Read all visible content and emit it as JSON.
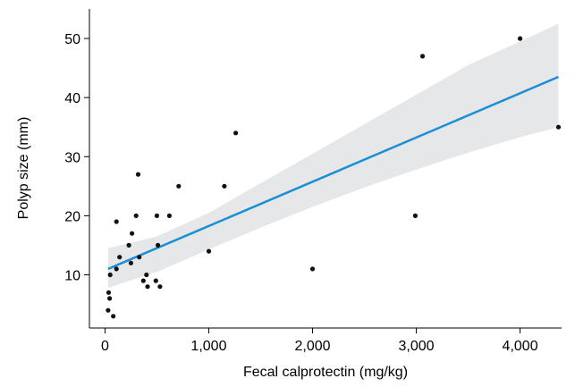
{
  "chart_data": {
    "type": "scatter",
    "title": "",
    "xlabel": "Fecal calprotectin (mg/kg)",
    "ylabel": "Polyp size (mm)",
    "xlim": [
      -150,
      4400
    ],
    "ylim": [
      1,
      55
    ],
    "x_ticks": [
      0,
      1000,
      2000,
      3000,
      4000
    ],
    "x_tick_labels": [
      "0",
      "1,000",
      "2,000",
      "3,000",
      "4,000"
    ],
    "y_ticks": [
      10,
      20,
      30,
      40,
      50
    ],
    "y_tick_labels": [
      "10",
      "20",
      "30",
      "40",
      "50"
    ],
    "grid": false,
    "points": [
      {
        "x": 30,
        "y": 4
      },
      {
        "x": 35,
        "y": 7
      },
      {
        "x": 45,
        "y": 6
      },
      {
        "x": 50,
        "y": 10
      },
      {
        "x": 80,
        "y": 3
      },
      {
        "x": 110,
        "y": 11
      },
      {
        "x": 110,
        "y": 19
      },
      {
        "x": 140,
        "y": 13
      },
      {
        "x": 230,
        "y": 15
      },
      {
        "x": 250,
        "y": 12
      },
      {
        "x": 260,
        "y": 17
      },
      {
        "x": 300,
        "y": 20
      },
      {
        "x": 320,
        "y": 27
      },
      {
        "x": 330,
        "y": 13
      },
      {
        "x": 370,
        "y": 9
      },
      {
        "x": 400,
        "y": 10
      },
      {
        "x": 410,
        "y": 8
      },
      {
        "x": 490,
        "y": 9
      },
      {
        "x": 500,
        "y": 20
      },
      {
        "x": 510,
        "y": 15
      },
      {
        "x": 530,
        "y": 8
      },
      {
        "x": 620,
        "y": 20
      },
      {
        "x": 710,
        "y": 25
      },
      {
        "x": 1000,
        "y": 14
      },
      {
        "x": 1150,
        "y": 25
      },
      {
        "x": 1260,
        "y": 34
      },
      {
        "x": 2000,
        "y": 11
      },
      {
        "x": 2990,
        "y": 20
      },
      {
        "x": 3060,
        "y": 47
      },
      {
        "x": 4000,
        "y": 50
      },
      {
        "x": 4370,
        "y": 35
      }
    ],
    "fit_line": {
      "x": [
        30,
        4370
      ],
      "y": [
        11,
        43.5
      ],
      "color": "#1a8fd6"
    },
    "confidence_band": {
      "x": [
        30,
        500,
        1000,
        1500,
        2000,
        2500,
        3000,
        3500,
        4000,
        4370
      ],
      "upper": [
        14.5,
        16.5,
        20.5,
        25.5,
        30.5,
        35.5,
        40.5,
        45.5,
        49.5,
        52.5
      ],
      "lower": [
        7.8,
        10.5,
        14.3,
        18.0,
        21.5,
        24.8,
        27.8,
        30.7,
        33.3,
        35.0
      ],
      "color": "#e6e7e9"
    },
    "point_color": "#111111"
  }
}
